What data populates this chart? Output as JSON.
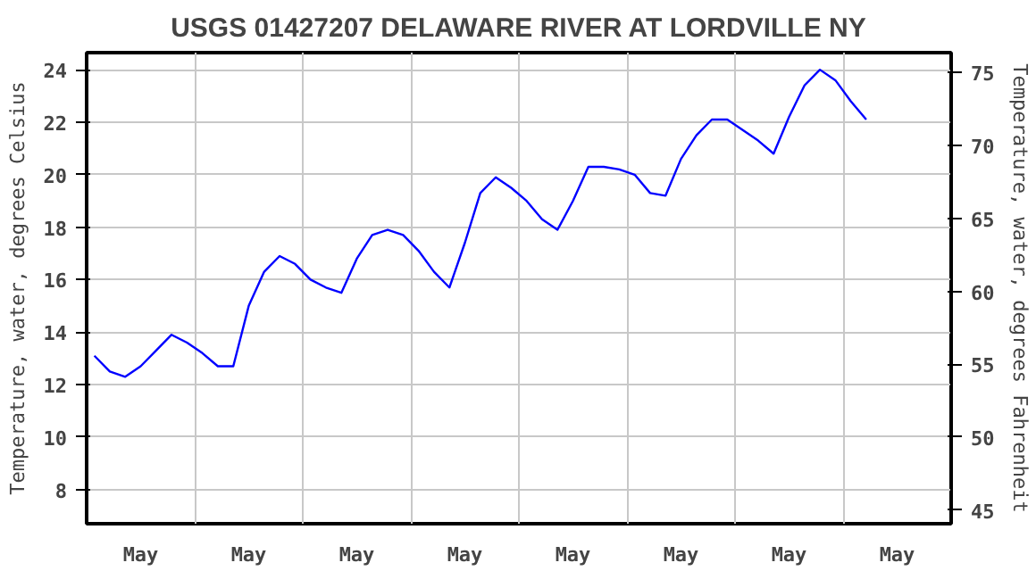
{
  "chart_data": {
    "type": "line",
    "title": "USGS 01427207 DELAWARE RIVER AT LORDVILLE NY",
    "ylabel": "Temperature, water, degrees Celsius",
    "y2label": "Temperature, water, degrees Fahrenheit",
    "categories": [
      null,
      null,
      null,
      "May",
      null,
      null,
      null,
      null,
      null,
      null,
      "May",
      null,
      null,
      null,
      null,
      null,
      null,
      "May",
      null,
      null,
      null,
      null,
      null,
      null,
      "May",
      null,
      null,
      null,
      null,
      null,
      null,
      "May",
      null,
      null,
      null,
      null,
      null,
      null,
      "May",
      null,
      null,
      null,
      null,
      null,
      null,
      "May",
      null,
      null,
      null,
      null,
      null,
      null,
      "May",
      null,
      null,
      null
    ],
    "series": [
      {
        "color": "#0000ff",
        "values": [
          13.1,
          12.5,
          12.3,
          12.7,
          13.3,
          13.9,
          13.6,
          13.2,
          12.7,
          12.7,
          15.0,
          16.3,
          16.9,
          16.6,
          16.0,
          15.7,
          15.5,
          16.8,
          17.7,
          17.9,
          17.7,
          17.1,
          16.3,
          15.7,
          17.4,
          19.3,
          19.9,
          19.5,
          19.0,
          18.3,
          17.9,
          19.0,
          20.3,
          20.3,
          20.2,
          20.0,
          19.3,
          19.2,
          20.6,
          21.5,
          22.1,
          22.1,
          21.7,
          21.3,
          20.8,
          22.2,
          23.4,
          24.0,
          23.6,
          22.8,
          22.1,
          null,
          null,
          null,
          null,
          null
        ]
      }
    ],
    "ylim": [
      6.7,
      24.65
    ],
    "yticks": [
      8,
      10,
      12,
      14,
      16,
      18,
      20,
      22,
      24
    ],
    "y2lim": [
      44.06,
      76.37
    ],
    "y2ticks": [
      45,
      50,
      55,
      60,
      65,
      70,
      75
    ],
    "grid": true,
    "line_style": "solid"
  }
}
